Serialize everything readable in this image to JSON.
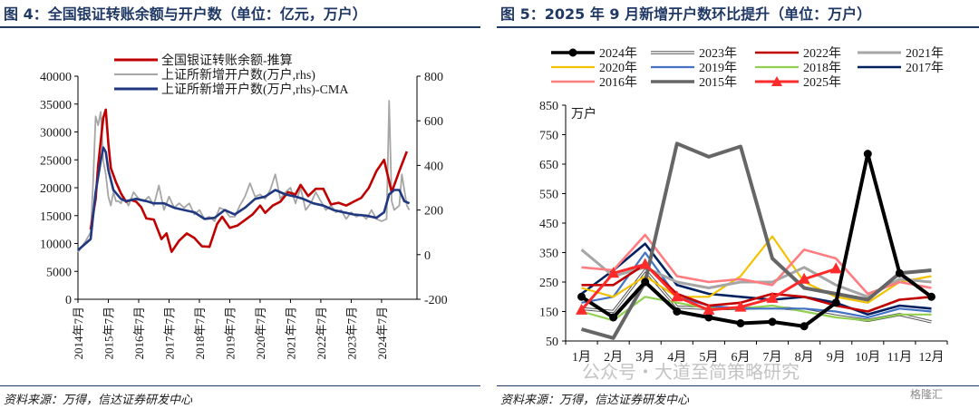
{
  "left": {
    "title": "图 4：全国银证转账余额与开户数（单位：亿元，万户）",
    "source": "资料来源：万得，信达证券研发中心"
  },
  "right": {
    "title": "图 5：2025 年 9 月新增开户数环比提升（单位：万户）",
    "source": "资料来源：万得，信达证券研发中心"
  },
  "watermark": "公众号・大道至简策略研究",
  "watermark_logo": "格隆汇",
  "chart_data": [
    {
      "type": "line",
      "legend_position": "top-left",
      "grid": false,
      "x_labels": [
        "2014年7月",
        "2015年7月",
        "2016年7月",
        "2017年7月",
        "2018年7月",
        "2019年7月",
        "2020年7月",
        "2021年7月",
        "2022年7月",
        "2023年7月",
        "2024年7月"
      ],
      "y_left_ticks": [
        0,
        5000,
        10000,
        15000,
        20000,
        25000,
        30000,
        35000,
        40000
      ],
      "y_right_ticks": [
        -200,
        0,
        200,
        400,
        600,
        800
      ],
      "ylim_left": [
        0,
        40000
      ],
      "ylim_right": [
        -200,
        800
      ],
      "x_start": "2014-07",
      "series": [
        {
          "name": "全国银证转账余额-推算",
          "axis": "left",
          "color": "#c00000",
          "points": [
            [
              "2014-12",
              12500
            ],
            [
              "2015-02",
              18000
            ],
            [
              "2015-03",
              24000
            ],
            [
              "2015-05",
              32500
            ],
            [
              "2015-06",
              34000
            ],
            [
              "2015-07",
              28000
            ],
            [
              "2015-08",
              23500
            ],
            [
              "2015-10",
              21000
            ],
            [
              "2015-12",
              19000
            ],
            [
              "2016-02",
              17500
            ],
            [
              "2016-04",
              17800
            ],
            [
              "2016-06",
              17500
            ],
            [
              "2016-08",
              16500
            ],
            [
              "2016-10",
              14500
            ],
            [
              "2017-01",
              14300
            ],
            [
              "2017-04",
              10800
            ],
            [
              "2017-06",
              11800
            ],
            [
              "2017-08",
              8500
            ],
            [
              "2017-11",
              10500
            ],
            [
              "2018-02",
              11800
            ],
            [
              "2018-05",
              11000
            ],
            [
              "2018-08",
              9500
            ],
            [
              "2018-11",
              9400
            ],
            [
              "2019-02",
              13500
            ],
            [
              "2019-04",
              14800
            ],
            [
              "2019-07",
              12800
            ],
            [
              "2019-10",
              13200
            ],
            [
              "2020-01",
              14200
            ],
            [
              "2020-04",
              15200
            ],
            [
              "2020-07",
              16800
            ],
            [
              "2020-09",
              15500
            ],
            [
              "2020-12",
              16800
            ],
            [
              "2021-03",
              17500
            ],
            [
              "2021-06",
              19200
            ],
            [
              "2021-09",
              18800
            ],
            [
              "2021-11",
              20500
            ],
            [
              "2022-02",
              18500
            ],
            [
              "2022-05",
              19800
            ],
            [
              "2022-08",
              19800
            ],
            [
              "2022-11",
              17000
            ],
            [
              "2023-02",
              17300
            ],
            [
              "2023-05",
              16800
            ],
            [
              "2023-08",
              17500
            ],
            [
              "2023-11",
              18200
            ],
            [
              "2024-02",
              20000
            ],
            [
              "2024-05",
              23000
            ],
            [
              "2024-08",
              25000
            ],
            [
              "2024-11",
              19200
            ],
            [
              "2025-02",
              23000
            ],
            [
              "2025-05",
              26500
            ]
          ]
        },
        {
          "name": "上证所新增开户数(万户,rhs)",
          "axis": "right",
          "color": "#a6a6a6",
          "points": [
            [
              "2014-07",
              10
            ],
            [
              "2014-10",
              60
            ],
            [
              "2014-12",
              100
            ],
            [
              "2015-01",
              320
            ],
            [
              "2015-02",
              620
            ],
            [
              "2015-03",
              580
            ],
            [
              "2015-04",
              640
            ],
            [
              "2015-05",
              420
            ],
            [
              "2015-06",
              360
            ],
            [
              "2015-07",
              260
            ],
            [
              "2015-08",
              220
            ],
            [
              "2015-09",
              280
            ],
            [
              "2015-10",
              240
            ],
            [
              "2015-11",
              240
            ],
            [
              "2015-12",
              230
            ],
            [
              "2016-01",
              260
            ],
            [
              "2016-03",
              220
            ],
            [
              "2016-05",
              280
            ],
            [
              "2016-07",
              250
            ],
            [
              "2016-09",
              240
            ],
            [
              "2016-11",
              260
            ],
            [
              "2017-01",
              220
            ],
            [
              "2017-03",
              310
            ],
            [
              "2017-05",
              200
            ],
            [
              "2017-07",
              260
            ],
            [
              "2017-09",
              210
            ],
            [
              "2017-11",
              230
            ],
            [
              "2018-01",
              210
            ],
            [
              "2018-03",
              230
            ],
            [
              "2018-05",
              180
            ],
            [
              "2018-07",
              200
            ],
            [
              "2018-09",
              160
            ],
            [
              "2018-11",
              170
            ],
            [
              "2019-01",
              150
            ],
            [
              "2019-03",
              210
            ],
            [
              "2019-05",
              200
            ],
            [
              "2019-07",
              170
            ],
            [
              "2019-09",
              170
            ],
            [
              "2019-11",
              220
            ],
            [
              "2020-01",
              260
            ],
            [
              "2020-03",
              320
            ],
            [
              "2020-05",
              260
            ],
            [
              "2020-07",
              270
            ],
            [
              "2020-09",
              250
            ],
            [
              "2020-11",
              290
            ],
            [
              "2021-01",
              360
            ],
            [
              "2021-03",
              250
            ],
            [
              "2021-05",
              280
            ],
            [
              "2021-07",
              300
            ],
            [
              "2021-09",
              230
            ],
            [
              "2021-11",
              300
            ],
            [
              "2022-01",
              200
            ],
            [
              "2022-03",
              230
            ],
            [
              "2022-05",
              280
            ],
            [
              "2022-07",
              240
            ],
            [
              "2022-09",
              200
            ],
            [
              "2022-11",
              220
            ],
            [
              "2023-01",
              190
            ],
            [
              "2023-03",
              200
            ],
            [
              "2023-05",
              160
            ],
            [
              "2023-07",
              190
            ],
            [
              "2023-09",
              170
            ],
            [
              "2023-11",
              180
            ],
            [
              "2024-01",
              160
            ],
            [
              "2024-03",
              200
            ],
            [
              "2024-05",
              160
            ],
            [
              "2024-07",
              150
            ],
            [
              "2024-09",
              160
            ],
            [
              "2024-10",
              690
            ],
            [
              "2024-11",
              240
            ],
            [
              "2024-12",
              200
            ],
            [
              "2025-02",
              220
            ],
            [
              "2025-03",
              360
            ],
            [
              "2025-05",
              220
            ],
            [
              "2025-06",
              200
            ]
          ]
        },
        {
          "name": "上证所新增开户数(万户,rhs)-CMA",
          "axis": "right",
          "color": "#1f3880",
          "points": [
            [
              "2014-07",
              20
            ],
            [
              "2014-12",
              70
            ],
            [
              "2015-02",
              280
            ],
            [
              "2015-04",
              420
            ],
            [
              "2015-05",
              480
            ],
            [
              "2015-06",
              460
            ],
            [
              "2015-07",
              380
            ],
            [
              "2015-09",
              290
            ],
            [
              "2015-12",
              250
            ],
            [
              "2016-02",
              240
            ],
            [
              "2016-06",
              250
            ],
            [
              "2016-10",
              240
            ],
            [
              "2017-01",
              230
            ],
            [
              "2017-05",
              230
            ],
            [
              "2017-09",
              210
            ],
            [
              "2018-01",
              200
            ],
            [
              "2018-05",
              190
            ],
            [
              "2018-09",
              160
            ],
            [
              "2019-01",
              165
            ],
            [
              "2019-05",
              200
            ],
            [
              "2019-09",
              180
            ],
            [
              "2020-01",
              210
            ],
            [
              "2020-05",
              250
            ],
            [
              "2020-09",
              260
            ],
            [
              "2021-01",
              290
            ],
            [
              "2021-05",
              270
            ],
            [
              "2021-09",
              260
            ],
            [
              "2021-12",
              250
            ],
            [
              "2022-04",
              230
            ],
            [
              "2022-08",
              220
            ],
            [
              "2022-12",
              200
            ],
            [
              "2023-04",
              190
            ],
            [
              "2023-08",
              180
            ],
            [
              "2024-01",
              175
            ],
            [
              "2024-05",
              165
            ],
            [
              "2024-08",
              190
            ],
            [
              "2024-10",
              270
            ],
            [
              "2024-12",
              290
            ],
            [
              "2025-02",
              290
            ],
            [
              "2025-04",
              240
            ],
            [
              "2025-06",
              230
            ]
          ]
        }
      ]
    },
    {
      "type": "line",
      "legend_position": "top",
      "grid": false,
      "ylabel": "万户",
      "categories": [
        "1月",
        "2月",
        "3月",
        "4月",
        "5月",
        "6月",
        "7月",
        "8月",
        "9月",
        "10月",
        "11月",
        "12月"
      ],
      "y_ticks": [
        50,
        150,
        250,
        350,
        450,
        550,
        650,
        750,
        850
      ],
      "ylim": [
        50,
        850
      ],
      "series": [
        {
          "name": "2024年",
          "color": "#000000",
          "width": 4,
          "marker": "dot",
          "values": [
            200,
            130,
            250,
            150,
            130,
            110,
            115,
            100,
            180,
            685,
            280,
            200
          ]
        },
        {
          "name": "2023年",
          "color": "#555555",
          "width": 1.6,
          "double": true,
          "values": [
            160,
            150,
            290,
            165,
            160,
            160,
            165,
            155,
            135,
            120,
            140,
            115
          ]
        },
        {
          "name": "2022年",
          "color": "#c00000",
          "width": 2.6,
          "values": [
            240,
            240,
            310,
            210,
            170,
            180,
            210,
            200,
            170,
            150,
            190,
            200
          ]
        },
        {
          "name": "2021年",
          "color": "#a6a6a6",
          "width": 3,
          "values": [
            360,
            270,
            300,
            250,
            230,
            250,
            250,
            300,
            240,
            200,
            260,
            250
          ]
        },
        {
          "name": "2020年",
          "color": "#f2c200",
          "width": 2.2,
          "values": [
            230,
            200,
            270,
            200,
            200,
            270,
            405,
            250,
            200,
            180,
            250,
            270
          ]
        },
        {
          "name": "2019年",
          "color": "#4472c4",
          "width": 2.2,
          "values": [
            180,
            200,
            350,
            200,
            170,
            160,
            160,
            160,
            150,
            130,
            160,
            150
          ]
        },
        {
          "name": "2018年",
          "color": "#92d050",
          "width": 2.2,
          "values": [
            150,
            120,
            200,
            180,
            160,
            160,
            170,
            150,
            130,
            120,
            140,
            140
          ]
        },
        {
          "name": "2017年",
          "color": "#002060",
          "width": 2.6,
          "values": [
            210,
            290,
            380,
            240,
            210,
            200,
            190,
            200,
            180,
            140,
            170,
            160
          ]
        },
        {
          "name": "2016年",
          "color": "#ff7c80",
          "width": 2.6,
          "values": [
            300,
            290,
            410,
            270,
            250,
            260,
            240,
            360,
            330,
            210,
            250,
            230
          ]
        },
        {
          "name": "2015年",
          "color": "#666666",
          "width": 4,
          "values": [
            90,
            60,
            250,
            720,
            675,
            710,
            330,
            230,
            210,
            190,
            280,
            290
          ]
        },
        {
          "name": "2025年",
          "color": "#ff2a2a",
          "width": 3,
          "marker": "triangle",
          "values": [
            155,
            280,
            310,
            200,
            155,
            165,
            195,
            260,
            295,
            null,
            null,
            null
          ]
        }
      ]
    }
  ]
}
